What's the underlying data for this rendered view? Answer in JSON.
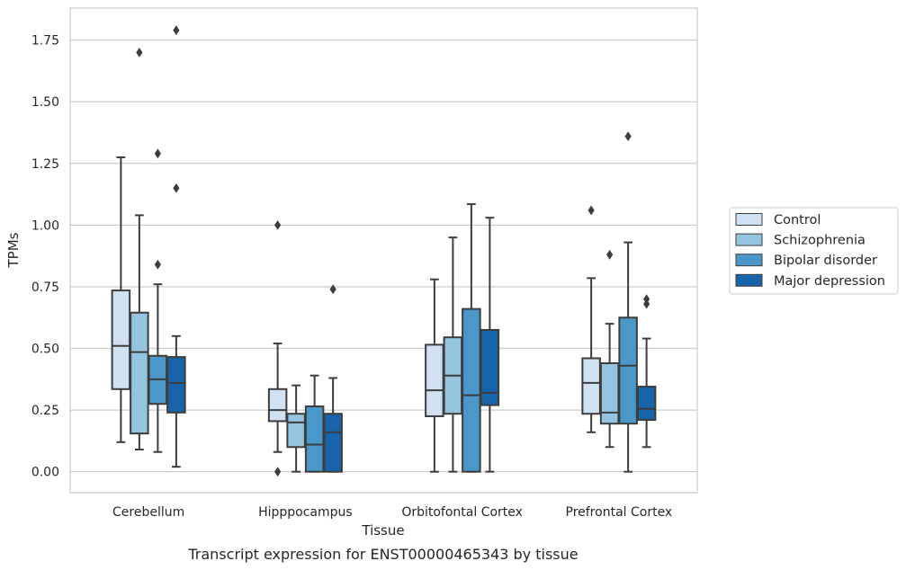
{
  "chart_data": {
    "type": "box",
    "xlabel": "Tissue",
    "ylabel": "TPMs",
    "caption": "Transcript expression for ENST00000465343 by tissue",
    "ylim": [
      -0.085,
      1.88
    ],
    "yticks": [
      0.0,
      0.25,
      0.5,
      0.75,
      1.0,
      1.25,
      1.5,
      1.75
    ],
    "ytick_labels": [
      "0.00",
      "0.25",
      "0.50",
      "0.75",
      "1.00",
      "1.25",
      "1.50",
      "1.75"
    ],
    "grid": "horizontal",
    "legend_position": "right",
    "categories": [
      "Cerebellum",
      "Hipppocampus",
      "Orbitofontal Cortex",
      "Prefrontal Cortex"
    ],
    "series": [
      {
        "name": "Control",
        "color": "#d0e1f2",
        "boxes": [
          {
            "whisker_low": 0.12,
            "q1": 0.335,
            "median": 0.51,
            "q3": 0.735,
            "whisker_high": 1.275,
            "outliers": []
          },
          {
            "whisker_low": 0.08,
            "q1": 0.205,
            "median": 0.25,
            "q3": 0.335,
            "whisker_high": 0.52,
            "outliers": [
              0.0,
              1.0
            ]
          },
          {
            "whisker_low": 0.0,
            "q1": 0.225,
            "median": 0.33,
            "q3": 0.515,
            "whisker_high": 0.78,
            "outliers": []
          },
          {
            "whisker_low": 0.16,
            "q1": 0.235,
            "median": 0.36,
            "q3": 0.46,
            "whisker_high": 0.785,
            "outliers": [
              1.06
            ]
          }
        ]
      },
      {
        "name": "Schizophrenia",
        "color": "#94c4df",
        "boxes": [
          {
            "whisker_low": 0.09,
            "q1": 0.155,
            "median": 0.485,
            "q3": 0.645,
            "whisker_high": 1.04,
            "outliers": [
              1.7
            ]
          },
          {
            "whisker_low": 0.0,
            "q1": 0.1,
            "median": 0.2,
            "q3": 0.235,
            "whisker_high": 0.35,
            "outliers": []
          },
          {
            "whisker_low": 0.0,
            "q1": 0.235,
            "median": 0.39,
            "q3": 0.545,
            "whisker_high": 0.95,
            "outliers": []
          },
          {
            "whisker_low": 0.1,
            "q1": 0.195,
            "median": 0.24,
            "q3": 0.44,
            "whisker_high": 0.6,
            "outliers": [
              0.88
            ]
          }
        ]
      },
      {
        "name": "Bipolar disorder",
        "color": "#4a98c9",
        "boxes": [
          {
            "whisker_low": 0.08,
            "q1": 0.275,
            "median": 0.375,
            "q3": 0.47,
            "whisker_high": 0.76,
            "outliers": [
              0.84,
              1.29
            ]
          },
          {
            "whisker_low": 0.0,
            "q1": 0.0,
            "median": 0.11,
            "q3": 0.265,
            "whisker_high": 0.39,
            "outliers": []
          },
          {
            "whisker_low": 0.0,
            "q1": 0.0,
            "median": 0.31,
            "q3": 0.66,
            "whisker_high": 1.085,
            "outliers": []
          },
          {
            "whisker_low": 0.0,
            "q1": 0.195,
            "median": 0.43,
            "q3": 0.625,
            "whisker_high": 0.93,
            "outliers": [
              1.36
            ]
          }
        ]
      },
      {
        "name": "Major depression",
        "color": "#1764ab",
        "boxes": [
          {
            "whisker_low": 0.02,
            "q1": 0.24,
            "median": 0.36,
            "q3": 0.465,
            "whisker_high": 0.55,
            "outliers": [
              1.15,
              1.79
            ]
          },
          {
            "whisker_low": 0.0,
            "q1": 0.0,
            "median": 0.16,
            "q3": 0.235,
            "whisker_high": 0.38,
            "outliers": [
              0.74
            ]
          },
          {
            "whisker_low": 0.0,
            "q1": 0.27,
            "median": 0.32,
            "q3": 0.575,
            "whisker_high": 1.03,
            "outliers": []
          },
          {
            "whisker_low": 0.1,
            "q1": 0.21,
            "median": 0.255,
            "q3": 0.345,
            "whisker_high": 0.54,
            "outliers": [
              0.68,
              0.7
            ]
          }
        ]
      }
    ]
  }
}
